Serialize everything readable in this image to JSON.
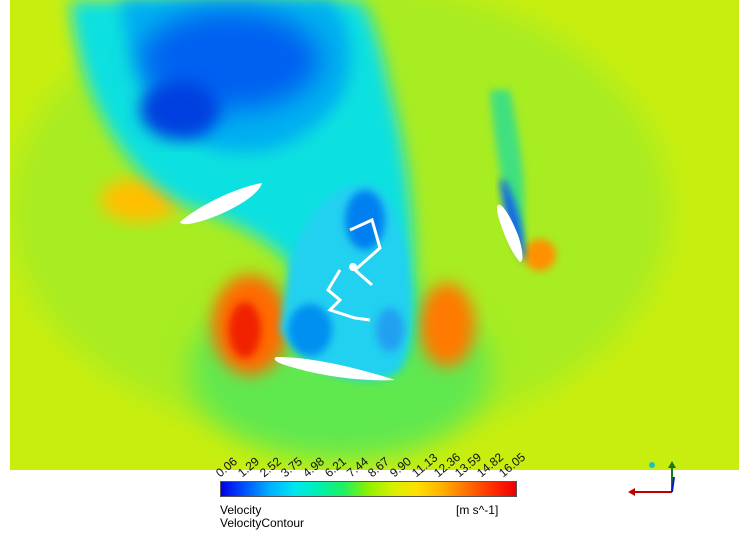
{
  "chart_data": {
    "type": "heatmap",
    "variable": "Velocity",
    "contour_name": "VelocityContour",
    "unit": "[m s^-1]",
    "range": [
      0.06,
      16.05
    ],
    "legend_ticks": [
      "0.06",
      "1.29",
      "2.52",
      "3.75",
      "4.98",
      "6.21",
      "7.44",
      "8.67",
      "9.90",
      "11.13",
      "12.36",
      "13.59",
      "14.82",
      "16.05"
    ],
    "colormap": [
      "#0000e6",
      "#0055ff",
      "#00b0ff",
      "#00e6f0",
      "#00f0b0",
      "#20f060",
      "#8ff000",
      "#d8f000",
      "#ffe000",
      "#ffb000",
      "#ff7000",
      "#ff3000",
      "#f00000"
    ],
    "legend_placement": "bottom-center"
  }
}
